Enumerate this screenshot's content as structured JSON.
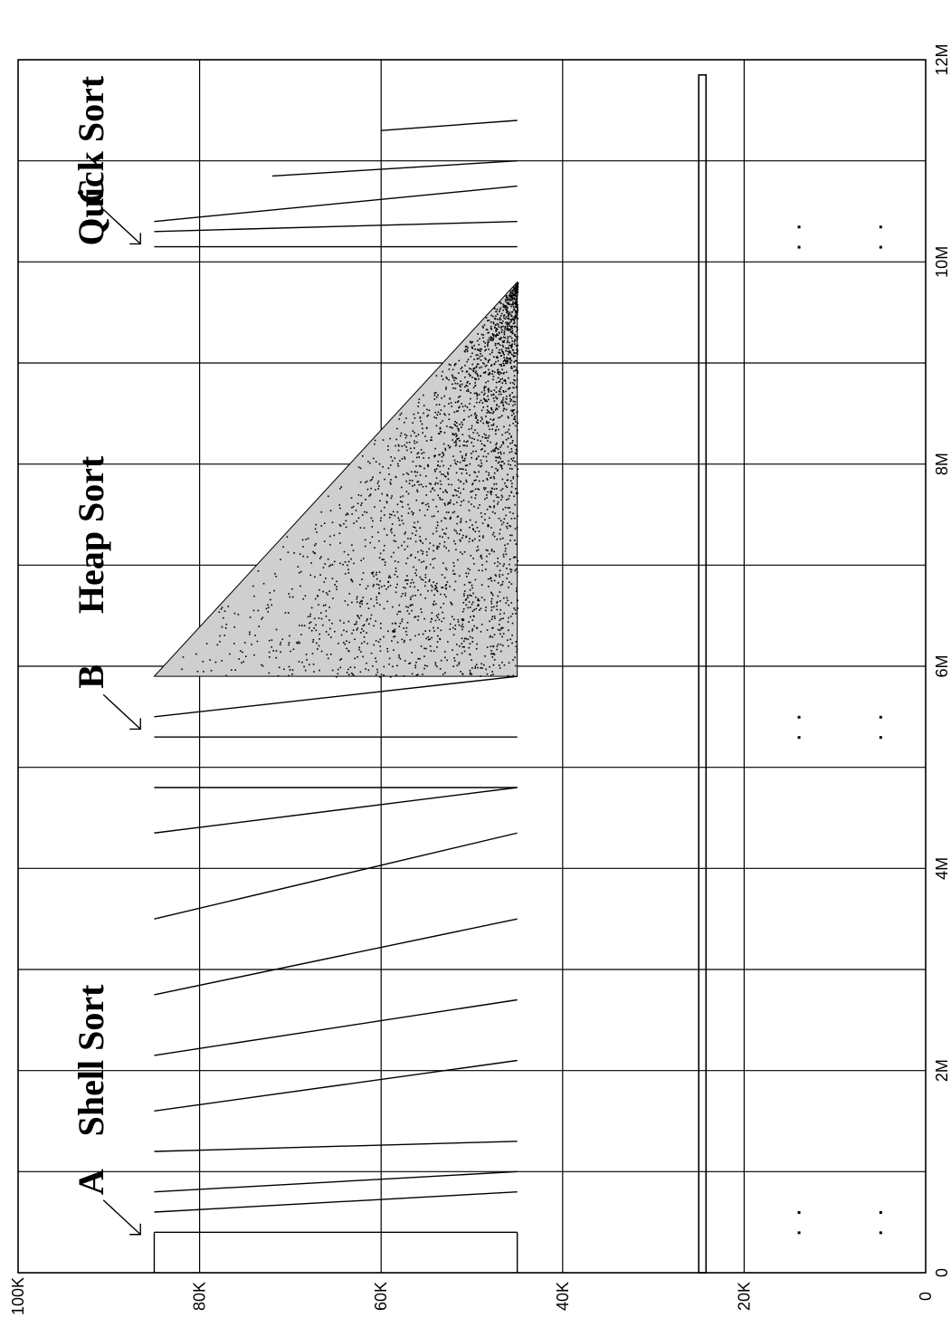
{
  "chart_data": {
    "type": "scatter",
    "title": "",
    "xlabel": "",
    "ylabel": "",
    "orientation": "rotated-90-clockwise",
    "xlim": [
      0,
      12000000
    ],
    "ylim": [
      0,
      100000
    ],
    "grid": true,
    "x_ticks": [
      {
        "value": 0,
        "label": "0"
      },
      {
        "value": 2000000,
        "label": "2M"
      },
      {
        "value": 4000000,
        "label": "4M"
      },
      {
        "value": 6000000,
        "label": "6M"
      },
      {
        "value": 8000000,
        "label": "8M"
      },
      {
        "value": 10000000,
        "label": "10M"
      },
      {
        "value": 12000000,
        "label": "12M"
      }
    ],
    "y_ticks": [
      {
        "value": 0,
        "label": "0"
      },
      {
        "value": 20000,
        "label": "20K"
      },
      {
        "value": 40000,
        "label": "40K"
      },
      {
        "value": 60000,
        "label": "60K"
      },
      {
        "value": 80000,
        "label": "80K"
      },
      {
        "value": 100000,
        "label": "100K"
      }
    ],
    "phase_labels": [
      {
        "text": "Shell Sort",
        "x": 2100000,
        "y": 92000
      },
      {
        "text": "Heap Sort",
        "x": 7300000,
        "y": 92000
      },
      {
        "text": "Quick Sort",
        "x": 11000000,
        "y": 92000
      }
    ],
    "markers": [
      {
        "text": "A",
        "x": 450000,
        "y": 92000
      },
      {
        "text": "B",
        "x": 5450000,
        "y": 92000
      },
      {
        "text": "C",
        "x": 10250000,
        "y": 92000
      }
    ],
    "series": [
      {
        "kind": "lines",
        "segments": [
          {
            "x1": 0,
            "y1": 85000,
            "x2": 400000,
            "y2": 85000
          },
          {
            "x1": 400000,
            "y1": 45000,
            "x2": 0,
            "y2": 45000
          },
          {
            "x1": 400000,
            "y1": 85000,
            "x2": 400000,
            "y2": 45000
          },
          {
            "x1": 600000,
            "y1": 85000,
            "x2": 800000,
            "y2": 45000
          },
          {
            "x1": 800000,
            "y1": 85000,
            "x2": 1000000,
            "y2": 45000
          },
          {
            "x1": 1200000,
            "y1": 85000,
            "x2": 1300000,
            "y2": 45000
          },
          {
            "x1": 1600000,
            "y1": 85000,
            "x2": 2100000,
            "y2": 45000
          },
          {
            "x1": 2150000,
            "y1": 85000,
            "x2": 2700000,
            "y2": 45000
          },
          {
            "x1": 2750000,
            "y1": 85000,
            "x2": 3500000,
            "y2": 45000
          },
          {
            "x1": 3500000,
            "y1": 85000,
            "x2": 4350000,
            "y2": 45000
          },
          {
            "x1": 4350000,
            "y1": 85000,
            "x2": 4800000,
            "y2": 45000
          },
          {
            "x1": 4800000,
            "y1": 85000,
            "x2": 4800000,
            "y2": 45000
          },
          {
            "x1": 5300000,
            "y1": 85000,
            "x2": 5300000,
            "y2": 45000
          },
          {
            "x1": 5500000,
            "y1": 85000,
            "x2": 5900000,
            "y2": 45000
          },
          {
            "x1": 10150000,
            "y1": 85000,
            "x2": 10150000,
            "y2": 45000
          },
          {
            "x1": 10300000,
            "y1": 85000,
            "x2": 10400000,
            "y2": 45000
          },
          {
            "x1": 10400000,
            "y1": 85000,
            "x2": 10750000,
            "y2": 45000
          },
          {
            "x1": 10850000,
            "y1": 72000,
            "x2": 11000000,
            "y2": 45000
          },
          {
            "x1": 11300000,
            "y1": 60000,
            "x2": 11400000,
            "y2": 45000
          }
        ]
      },
      {
        "kind": "heap-region",
        "x_start": 5900000,
        "x_end": 9800000,
        "y_low": 45000,
        "y_high": 85000
      },
      {
        "kind": "band",
        "x_start": 0,
        "x_end": 11850000,
        "y_low": 24200,
        "y_high": 25000
      },
      {
        "kind": "dots",
        "points": [
          {
            "x": 400000,
            "y": 14000
          },
          {
            "x": 600000,
            "y": 14000
          },
          {
            "x": 400000,
            "y": 5000
          },
          {
            "x": 600000,
            "y": 5000
          },
          {
            "x": 5300000,
            "y": 14000
          },
          {
            "x": 5500000,
            "y": 14000
          },
          {
            "x": 5300000,
            "y": 5000
          },
          {
            "x": 5500000,
            "y": 5000
          },
          {
            "x": 10150000,
            "y": 14000
          },
          {
            "x": 10350000,
            "y": 14000
          },
          {
            "x": 10150000,
            "y": 5000
          },
          {
            "x": 10350000,
            "y": 5000
          }
        ]
      }
    ]
  }
}
